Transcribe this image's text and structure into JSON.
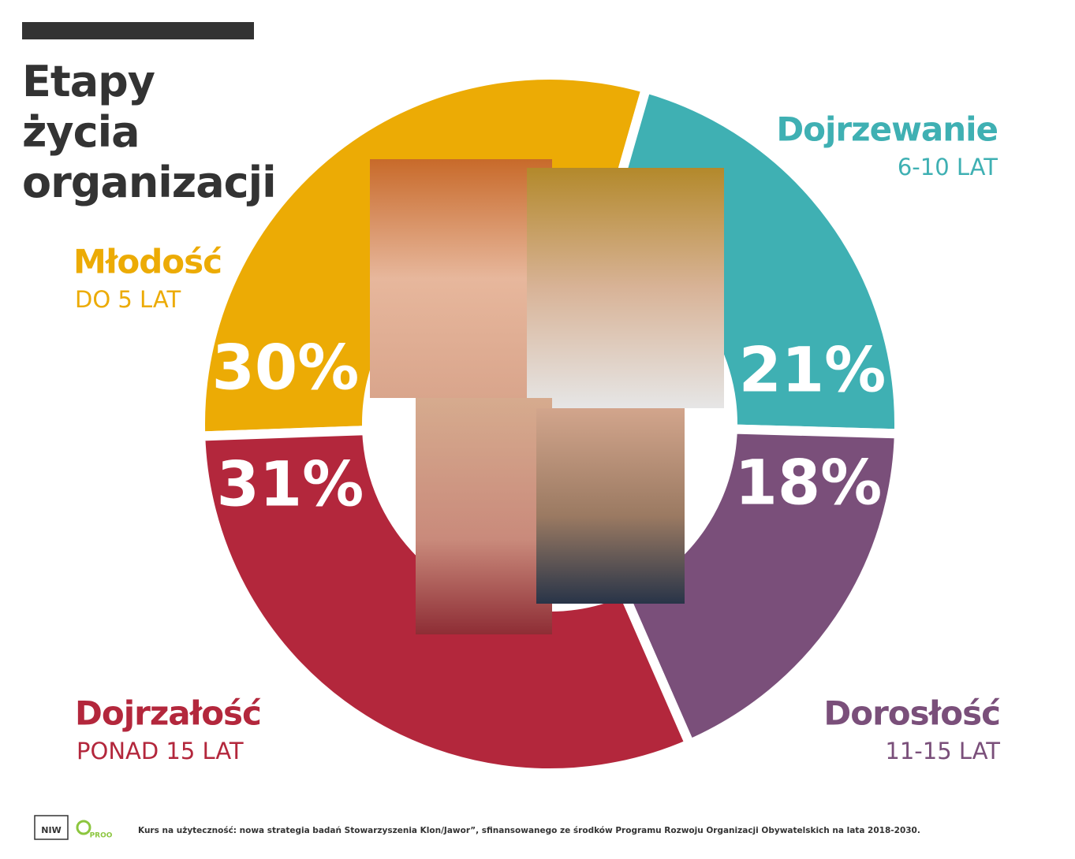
{
  "chart_data": {
    "type": "donut",
    "title": "Etapy życia organizacji",
    "categories": [
      "Młodość",
      "Dojrzewanie",
      "Dorosłość",
      "Dojrzałość"
    ],
    "age_labels": [
      "DO 5 LAT",
      "6-10 LAT",
      "11-15 LAT",
      "PONAD 15 LAT"
    ],
    "values": [
      30,
      21,
      18,
      31
    ],
    "value_labels": [
      "30%",
      "21%",
      "18%",
      "31%"
    ],
    "colors": [
      "#ecab05",
      "#3fb0b3",
      "#7a4f7a",
      "#b3273c"
    ]
  },
  "footer": {
    "source": "Kurs na użyteczność: nowa strategia badań Stowarzyszenia Klon/Jawor”, sfinansowanego ze środków Programu Rozwoju Organizacji Obywatelskich na lata 2018-2030.",
    "logo_1": "NIW",
    "logo_2": "PROO"
  }
}
